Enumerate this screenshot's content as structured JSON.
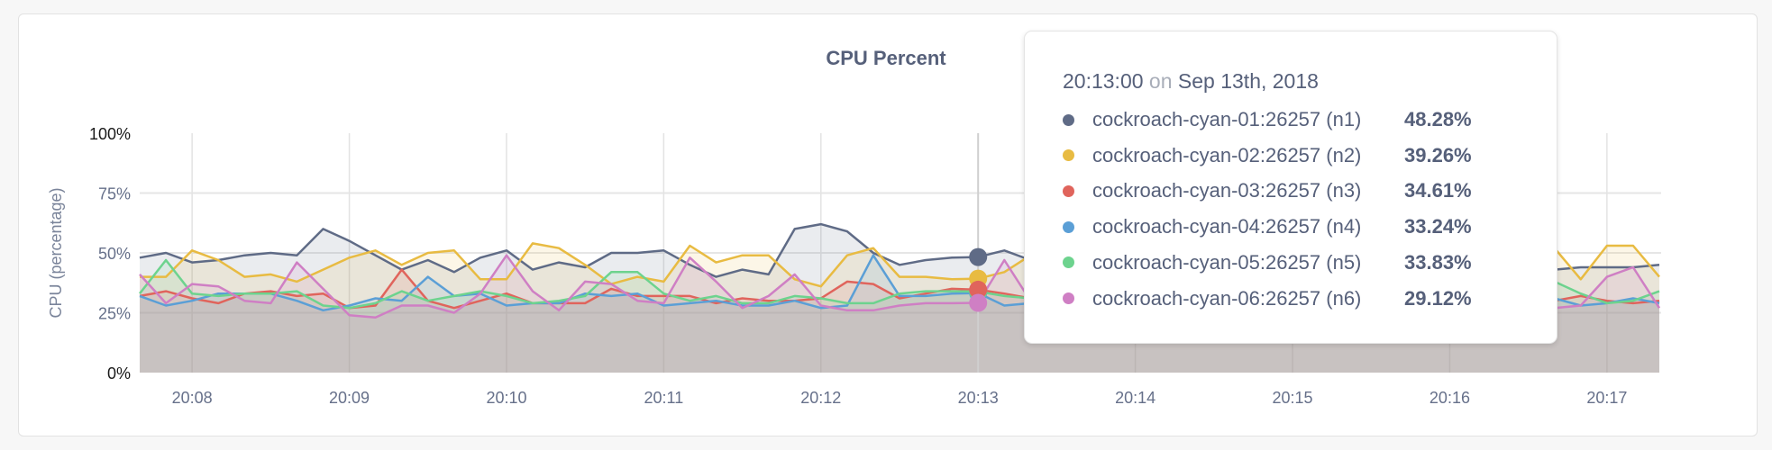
{
  "chart_data": {
    "type": "area",
    "title": "CPU Percent",
    "ylabel": "CPU (percentage)",
    "xlabel": "",
    "ylim": [
      0,
      100
    ],
    "yticks": [
      "0%",
      "25%",
      "50%",
      "75%",
      "100%"
    ],
    "ytick_values": [
      0,
      25,
      50,
      75,
      100
    ],
    "xticks": [
      "20:08",
      "20:09",
      "20:10",
      "20:11",
      "20:12",
      "20:13",
      "20:14",
      "20:15",
      "20:16",
      "20:17"
    ],
    "x_start": "20:07:40",
    "x_interval_seconds": 10,
    "grid": true,
    "series": [
      {
        "name": "cockroach-cyan-01:26257 (n1)",
        "color": "#5f6b86",
        "values": [
          48,
          50,
          46,
          47,
          49,
          50,
          49,
          60,
          55,
          49,
          43,
          47,
          42,
          48,
          51,
          43,
          46,
          44,
          50,
          50,
          51,
          45,
          40,
          43,
          41,
          60,
          62,
          59,
          50,
          45,
          47,
          48,
          48.28,
          51,
          47,
          45,
          44,
          46,
          48,
          47,
          45,
          44,
          46,
          47,
          45,
          44,
          43,
          45,
          46,
          44,
          43,
          44,
          45,
          44,
          43,
          44,
          44,
          44,
          45
        ]
      },
      {
        "name": "cockroach-cyan-02:26257 (n2)",
        "color": "#e8bb42",
        "values": [
          40,
          40,
          51,
          47,
          40,
          41,
          38,
          43,
          48,
          51,
          45,
          50,
          51,
          39,
          39,
          54,
          52,
          45,
          37,
          40,
          38,
          53,
          46,
          49,
          49,
          39,
          36,
          49,
          52,
          40,
          40,
          39,
          39.26,
          42,
          49,
          44,
          41,
          47,
          50,
          43,
          40,
          46,
          49,
          42,
          41,
          45,
          48,
          40,
          39,
          44,
          50,
          46,
          41,
          45,
          52,
          39,
          53,
          53,
          40
        ]
      },
      {
        "name": "cockroach-cyan-03:26257 (n3)",
        "color": "#e0645c",
        "values": [
          32,
          34,
          31,
          29,
          33,
          34,
          32,
          33,
          27,
          28,
          43,
          30,
          27,
          30,
          33,
          29,
          29,
          29,
          35,
          32,
          32,
          32,
          29,
          31,
          30,
          30,
          31,
          38,
          37,
          31,
          33,
          35,
          34.61,
          33,
          31,
          30,
          33,
          32,
          30,
          31,
          34,
          32,
          30,
          31,
          33,
          30,
          31,
          32,
          30,
          31,
          33,
          32,
          30,
          31,
          30,
          32,
          30,
          29,
          30
        ]
      },
      {
        "name": "cockroach-cyan-04:26257 (n4)",
        "color": "#5b9fd6",
        "values": [
          32,
          28,
          30,
          33,
          33,
          33,
          30,
          26,
          28,
          31,
          30,
          40,
          32,
          33,
          28,
          29,
          29,
          33,
          32,
          33,
          28,
          29,
          30,
          28,
          28,
          30,
          27,
          28,
          49,
          32,
          32,
          33,
          33.24,
          28,
          29,
          30,
          31,
          29,
          30,
          32,
          29,
          28,
          30,
          31,
          29,
          30,
          32,
          29,
          28,
          30,
          31,
          30,
          29,
          30,
          31,
          28,
          29,
          31,
          29
        ]
      },
      {
        "name": "cockroach-cyan-05:26257 (n5)",
        "color": "#6dd38e",
        "values": [
          33,
          47,
          33,
          32,
          33,
          33,
          34,
          28,
          27,
          29,
          34,
          30,
          32,
          34,
          32,
          29,
          30,
          32,
          42,
          42,
          33,
          30,
          32,
          29,
          29,
          32,
          31,
          29,
          29,
          33,
          34,
          34,
          33.83,
          32,
          31,
          33,
          32,
          30,
          34,
          33,
          31,
          30,
          32,
          34,
          33,
          31,
          30,
          33,
          32,
          31,
          34,
          36,
          37,
          38,
          38,
          33,
          29,
          30,
          34
        ]
      },
      {
        "name": "cockroach-cyan-06:26257 (n6)",
        "color": "#cf7fc4",
        "values": [
          41,
          29,
          37,
          36,
          30,
          29,
          46,
          35,
          24,
          23,
          28,
          28,
          25,
          33,
          49,
          34,
          26,
          38,
          37,
          30,
          29,
          48,
          38,
          27,
          32,
          41,
          28,
          26,
          26,
          28,
          29,
          29,
          29.12,
          47,
          30,
          28,
          29,
          31,
          27,
          30,
          32,
          28,
          29,
          31,
          28,
          30,
          27,
          29,
          31,
          28,
          30,
          29,
          28,
          27,
          27,
          28,
          40,
          44,
          27
        ]
      }
    ]
  },
  "tooltip": {
    "time": "20:13:00",
    "on": "on",
    "date": "Sep 13th, 2018",
    "rows": [
      {
        "name": "cockroach-cyan-01:26257 (n1)",
        "value": "48.28%"
      },
      {
        "name": "cockroach-cyan-02:26257 (n2)",
        "value": "39.26%"
      },
      {
        "name": "cockroach-cyan-03:26257 (n3)",
        "value": "34.61%"
      },
      {
        "name": "cockroach-cyan-04:26257 (n4)",
        "value": "33.24%"
      },
      {
        "name": "cockroach-cyan-05:26257 (n5)",
        "value": "33.83%"
      },
      {
        "name": "cockroach-cyan-06:26257 (n6)",
        "value": "29.12%"
      }
    ]
  },
  "hover_index": 32
}
